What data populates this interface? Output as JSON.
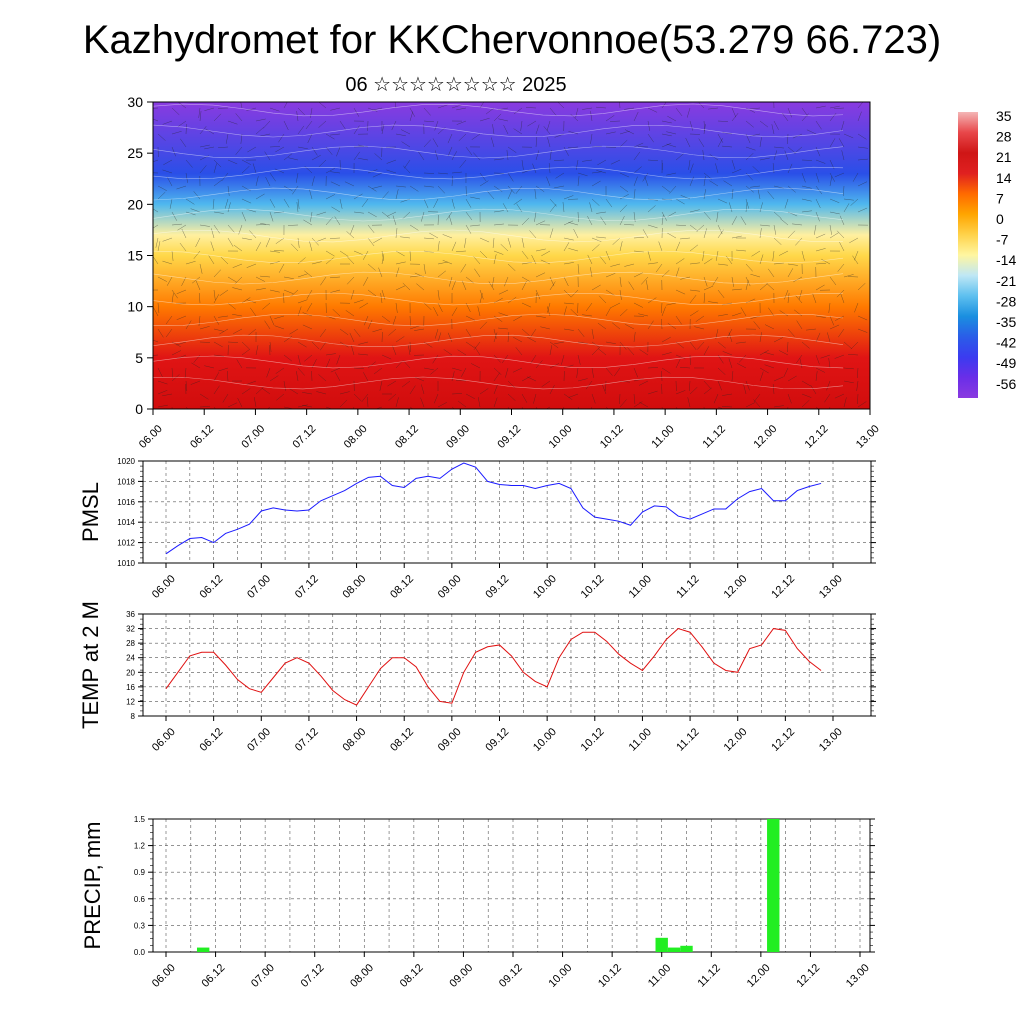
{
  "title": "Kazhydromet for KKChervonnoe(53.279 66.723)",
  "subtitle": "06 ☆☆☆☆☆☆☆☆ 2025",
  "time_labels": [
    "06.00",
    "06.12",
    "07.00",
    "07.12",
    "08.00",
    "08.12",
    "09.00",
    "09.12",
    "10.00",
    "10.12",
    "11.00",
    "11.12",
    "12.00",
    "12.12",
    "13.00"
  ],
  "chart_data": [
    {
      "type": "heatmap",
      "title": "",
      "ylim": [
        0,
        30
      ],
      "yticks": [
        0,
        5,
        10,
        15,
        20,
        25,
        30
      ],
      "colorbar": {
        "labels": [
          "35",
          "28",
          "21",
          "14",
          "7",
          "0",
          "-7",
          "-14",
          "-21",
          "-28",
          "-35",
          "-42",
          "-49",
          "-56"
        ],
        "colors": [
          "#f4b6b6",
          "#e8474a",
          "#cf1616",
          "#e02020",
          "#ff6a00",
          "#ffa500",
          "#ffd24a",
          "#fff6a0",
          "#bfe7f5",
          "#5ec0ef",
          "#1a8fe0",
          "#2a5de8",
          "#3b3bf0",
          "#6a2ee8",
          "#8a3ae0"
        ]
      },
      "temperature_by_height": [
        {
          "height": 0,
          "value": 30
        },
        {
          "height": 5,
          "value": 21
        },
        {
          "height": 10,
          "value": 9
        },
        {
          "height": 15,
          "value": -5
        },
        {
          "height": 17,
          "value": -12
        },
        {
          "height": 20,
          "value": -30
        },
        {
          "height": 23,
          "value": -45
        },
        {
          "height": 30,
          "value": -58
        }
      ],
      "overlay": "wind barbs / streamlines"
    },
    {
      "type": "line",
      "ylabel": "PMSL",
      "ylim": [
        1010,
        1020
      ],
      "yticks": [
        1010,
        1012,
        1014,
        1016,
        1018,
        1020
      ],
      "color": "#1a1aff",
      "x_hours": [
        0,
        3,
        6,
        9,
        12,
        15,
        18,
        21,
        24,
        27,
        30,
        33,
        36,
        39,
        42,
        45,
        48,
        51,
        54,
        57,
        60,
        63,
        66,
        69,
        72,
        75,
        78,
        81,
        84,
        87,
        90,
        93,
        96,
        99,
        102,
        105,
        108,
        111,
        114,
        117,
        120,
        123,
        126,
        129,
        132,
        135,
        138,
        141,
        144,
        147,
        150,
        153,
        156,
        159,
        162,
        165
      ],
      "values": [
        1010.9,
        1011.7,
        1012.4,
        1012.5,
        1012.0,
        1012.9,
        1013.3,
        1013.8,
        1015.1,
        1015.4,
        1015.2,
        1015.1,
        1015.2,
        1016.1,
        1016.6,
        1017.1,
        1017.8,
        1018.4,
        1018.5,
        1017.6,
        1017.4,
        1018.3,
        1018.5,
        1018.3,
        1019.2,
        1019.8,
        1019.4,
        1018.0,
        1017.7,
        1017.6,
        1017.6,
        1017.3,
        1017.6,
        1017.8,
        1017.3,
        1015.4,
        1014.5,
        1014.3,
        1014.1,
        1013.7,
        1015.0,
        1015.6,
        1015.5,
        1014.6,
        1014.3,
        1014.8,
        1015.3,
        1015.3,
        1016.3,
        1017.0,
        1017.3,
        1016.1,
        1016.1,
        1017.1,
        1017.5,
        1017.8
      ]
    },
    {
      "type": "line",
      "ylabel": "TEMP at 2 M",
      "ylim": [
        8,
        36
      ],
      "yticks": [
        8,
        12,
        16,
        20,
        24,
        28,
        32,
        36
      ],
      "color": "#e01010",
      "x_hours": [
        0,
        3,
        6,
        9,
        12,
        15,
        18,
        21,
        24,
        27,
        30,
        33,
        36,
        39,
        42,
        45,
        48,
        51,
        54,
        57,
        60,
        63,
        66,
        69,
        72,
        75,
        78,
        81,
        84,
        87,
        90,
        93,
        96,
        99,
        102,
        105,
        108,
        111,
        114,
        117,
        120,
        123,
        126,
        129,
        132,
        135,
        138,
        141,
        144,
        147,
        150,
        153,
        156,
        159,
        162,
        165
      ],
      "values": [
        15.5,
        20.0,
        24.5,
        25.5,
        25.5,
        22.0,
        18.0,
        15.5,
        14.5,
        18.5,
        22.5,
        24.0,
        22.5,
        19.0,
        15.0,
        12.5,
        11.0,
        16.0,
        21.0,
        24.0,
        24.0,
        21.5,
        16.0,
        12.0,
        11.5,
        20.0,
        25.5,
        27.0,
        27.5,
        24.5,
        20.0,
        17.5,
        16.0,
        24.0,
        29.0,
        31.0,
        31.0,
        28.5,
        25.0,
        22.5,
        20.5,
        24.5,
        29.0,
        32.0,
        31.0,
        27.0,
        22.5,
        20.5,
        20.0,
        26.5,
        27.5,
        32.0,
        31.5,
        26.5,
        23.0,
        20.5
      ]
    },
    {
      "type": "bar",
      "ylabel": "PRECIP, mm",
      "ylim": [
        0,
        1.5
      ],
      "yticks": [
        "0.0",
        "0.3",
        "0.6",
        "0.9",
        "1.2",
        "1.5"
      ],
      "color": "#22ee22",
      "bars": [
        {
          "x_hours": 9,
          "value": 0.05
        },
        {
          "x_hours": 120,
          "value": 0.16
        },
        {
          "x_hours": 123,
          "value": 0.05
        },
        {
          "x_hours": 126,
          "value": 0.07
        },
        {
          "x_hours": 147,
          "value": 1.5
        }
      ]
    }
  ]
}
